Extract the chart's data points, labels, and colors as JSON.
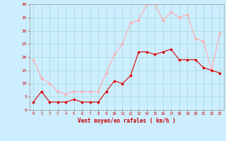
{
  "hours": [
    0,
    1,
    2,
    3,
    4,
    5,
    6,
    7,
    8,
    9,
    10,
    11,
    12,
    13,
    14,
    15,
    16,
    17,
    18,
    19,
    20,
    21,
    22,
    23
  ],
  "wind_avg": [
    3,
    7,
    3,
    3,
    3,
    4,
    3,
    3,
    3,
    7,
    11,
    10,
    13,
    22,
    22,
    21,
    22,
    23,
    19,
    19,
    19,
    16,
    15,
    14
  ],
  "wind_gust": [
    19,
    12,
    10,
    7,
    6,
    7,
    7,
    7,
    7,
    14,
    21,
    25,
    33,
    34,
    40,
    40,
    34,
    37,
    35,
    36,
    27,
    26,
    15,
    29
  ],
  "color_avg": "#dd0000",
  "color_gust": "#ffaaaa",
  "bg_color": "#cceeff",
  "grid_color": "#aadddd",
  "xlabel": "Vent moyen/en rafales ( km/h )",
  "ylim": [
    0,
    40
  ],
  "yticks": [
    0,
    5,
    10,
    15,
    20,
    25,
    30,
    35,
    40
  ],
  "tick_color": "#cc0000",
  "xlabel_color": "#cc0000",
  "marker_avg": "D",
  "marker_gust": "D",
  "linewidth": 0.8,
  "markersize": 1.8
}
